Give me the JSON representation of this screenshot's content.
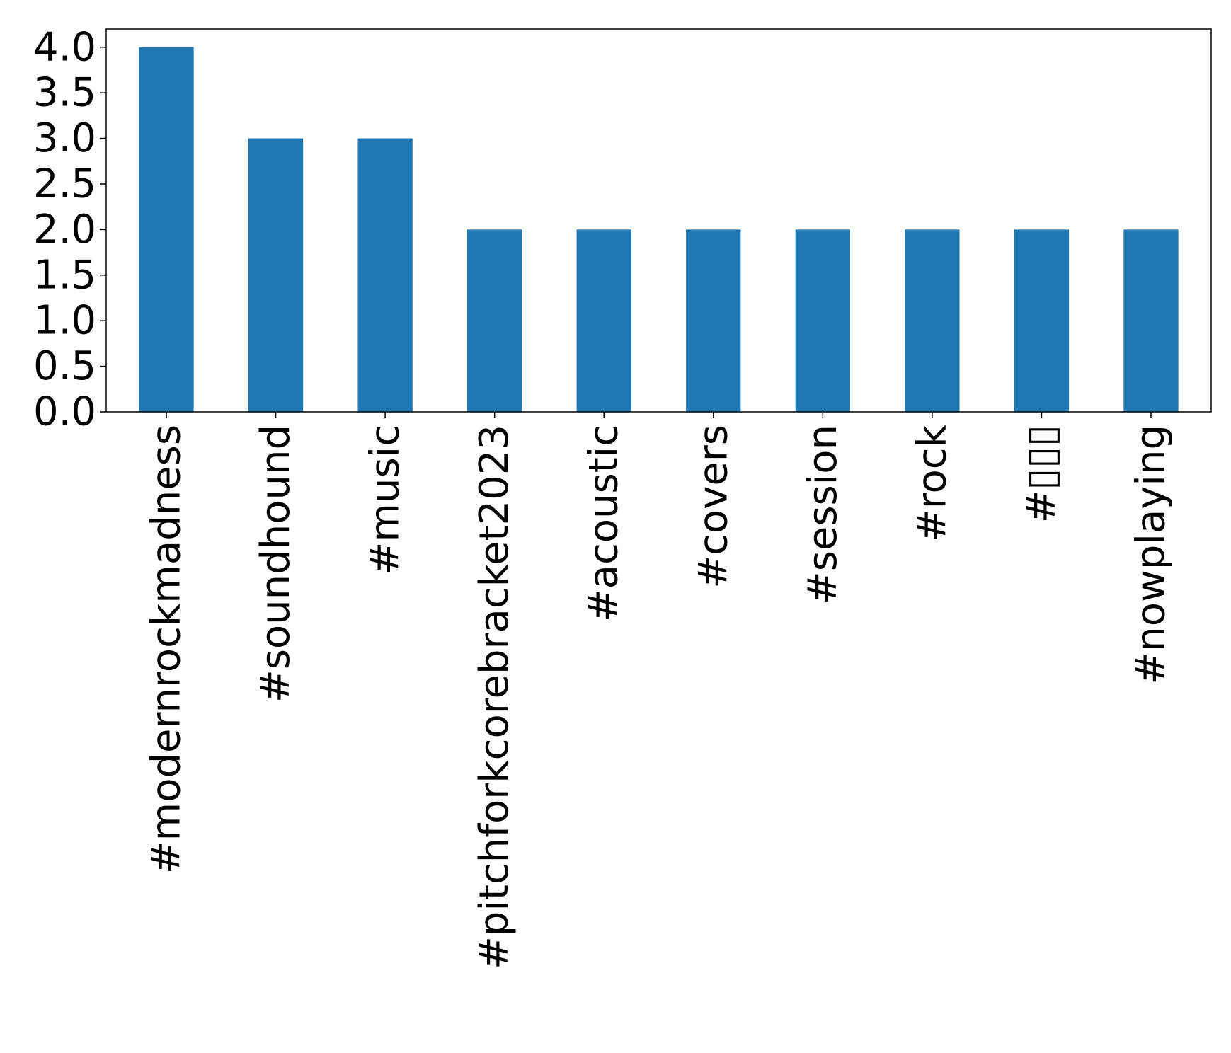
{
  "chart_data": {
    "type": "bar",
    "title": "",
    "xlabel": "",
    "ylabel": "",
    "categories": [
      "#modernrockmadness",
      "#soundhound",
      "#music",
      "#pitchforkcorebracket2023",
      "#acoustic",
      "#covers",
      "#session",
      "#rock",
      "#▯▯▯",
      "#nowplaying"
    ],
    "values": [
      4,
      3,
      3,
      2,
      2,
      2,
      2,
      2,
      2,
      2
    ],
    "ylim": [
      0,
      4.2
    ],
    "yticks": [
      "0.0",
      "0.5",
      "1.0",
      "1.5",
      "2.0",
      "2.5",
      "3.0",
      "3.5",
      "4.0"
    ],
    "bar_color": "#1f77b4",
    "grid": false,
    "legend": "none"
  }
}
